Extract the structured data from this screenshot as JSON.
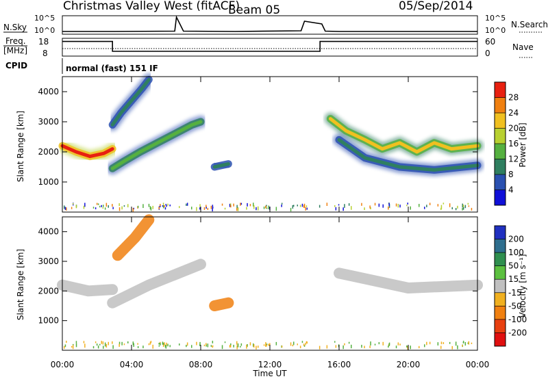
{
  "header": {
    "radar": "Christmas Valley West (fitACF)",
    "beam": "Beam 05",
    "date": "05/Sep/2014"
  },
  "panel_labels": {
    "nsky": "N.Sky",
    "freq": "Freq.",
    "freq_unit": "[MHz]",
    "cpid": "CPID",
    "nsearch": "N.Search",
    "nave": "Nave",
    "mode": "normal (fast) 151 IF"
  },
  "noise_ticks": {
    "left_top": "10^5",
    "left_bottom": "10^0",
    "right_top": "10^5",
    "right_bottom": "10^0"
  },
  "freq_ticks": {
    "left_top": "18",
    "left_bottom": "8",
    "right_top": "60",
    "right_bottom": "0"
  },
  "axes": {
    "ylabel": "Slant Range [km]",
    "xlabel": "Time UT",
    "y_ticks": [
      "1000",
      "2000",
      "3000",
      "4000"
    ],
    "x_ticks": [
      "00:00",
      "04:00",
      "08:00",
      "12:00",
      "16:00",
      "20:00",
      "00:00"
    ]
  },
  "power_scale": {
    "label": "Power [dB]",
    "ticks": [
      "4",
      "8",
      "12",
      "16",
      "20",
      "24",
      "28"
    ],
    "colors": [
      "#1010d8",
      "#2a50b0",
      "#2f7f60",
      "#55b040",
      "#b8d030",
      "#f0c020",
      "#f08010",
      "#e82010"
    ]
  },
  "velocity_scale": {
    "label": "Velocity [m s⁻¹]",
    "ticks": [
      "200",
      "100",
      "50",
      "15",
      "-15",
      "-50",
      "-100",
      "-200"
    ],
    "colors": [
      "#2030c0",
      "#2e6e8e",
      "#2f8f4f",
      "#5cc040",
      "#c0c0c0",
      "#f0b020",
      "#f08010",
      "#e84010",
      "#e01010"
    ]
  },
  "chart_data": {
    "type": "heatmap",
    "x_range_hours": [
      0,
      24
    ],
    "y_range_km": [
      0,
      4500
    ],
    "noise_series": {
      "name": "N.Sky",
      "x_hours": [
        0,
        3,
        6.5,
        6.6,
        7,
        10,
        13.8,
        14,
        15,
        15.2,
        16,
        24
      ],
      "y_log10": [
        0.6,
        0.6,
        0.7,
        4.8,
        0.7,
        0.6,
        0.8,
        3.6,
        2.8,
        0.7,
        0.6,
        0.6
      ]
    },
    "freq_series": {
      "name": "Freq.",
      "x_hours": [
        0,
        2.9,
        2.9,
        14.9,
        14.9,
        24
      ],
      "y_mhz": [
        16.5,
        16.5,
        10.5,
        10.5,
        16.5,
        16.5
      ]
    },
    "power_features": [
      {
        "x_hours": [
          0,
          0.8,
          1.6,
          2.4,
          2.9
        ],
        "range_km": [
          2200,
          2000,
          1850,
          1950,
          2100
        ],
        "db": 28
      },
      {
        "x_hours": [
          2.9,
          3.6,
          4.5,
          5.5,
          6.5,
          7.5,
          8.0
        ],
        "range_km": [
          1450,
          1700,
          2000,
          2300,
          2600,
          2900,
          3000
        ],
        "db": 14
      },
      {
        "x_hours": [
          2.9,
          3.4,
          4.0,
          4.6,
          5.0
        ],
        "range_km": [
          2900,
          3300,
          3700,
          4100,
          4400
        ],
        "db": 10
      },
      {
        "x_hours": [
          8.8,
          9.2,
          9.6
        ],
        "range_km": [
          1500,
          1550,
          1600
        ],
        "db": 8
      },
      {
        "x_hours": [
          15.5,
          16.4,
          17.5,
          18.5,
          19.5,
          20.5,
          21.5,
          22.5,
          24
        ],
        "range_km": [
          3100,
          2700,
          2400,
          2100,
          2300,
          2000,
          2300,
          2100,
          2200
        ],
        "db": 20
      },
      {
        "x_hours": [
          16.0,
          17.5,
          19.5,
          21.5,
          24
        ],
        "range_km": [
          2400,
          1800,
          1500,
          1400,
          1550
        ],
        "db": 8
      }
    ],
    "velocity_features": [
      {
        "x_hours": [
          0,
          1.5,
          2.9
        ],
        "range_km": [
          2200,
          2000,
          2050
        ],
        "velocity": 0
      },
      {
        "x_hours": [
          2.9,
          5.0,
          8.0
        ],
        "range_km": [
          1600,
          2200,
          2900
        ],
        "velocity": 0
      },
      {
        "x_hours": [
          3.2,
          4.2,
          5.0
        ],
        "range_km": [
          3200,
          3800,
          4400
        ],
        "velocity": -60
      },
      {
        "x_hours": [
          8.8,
          9.6
        ],
        "range_km": [
          1500,
          1600
        ],
        "velocity": -80
      },
      {
        "x_hours": [
          16,
          20,
          24
        ],
        "range_km": [
          2600,
          2100,
          2200
        ],
        "velocity": 0
      }
    ]
  }
}
